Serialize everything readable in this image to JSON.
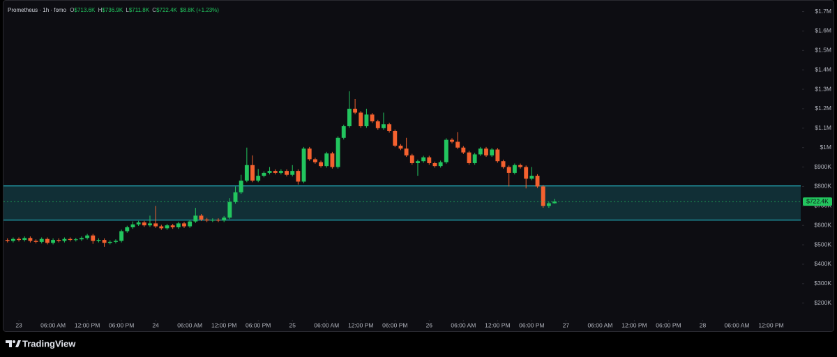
{
  "header": {
    "symbol": "Prometheus · 1h · fomo",
    "ohlc": [
      {
        "key": "O",
        "value": "$713.6K"
      },
      {
        "key": "H",
        "value": "$736.9K"
      },
      {
        "key": "L",
        "value": "$711.8K"
      },
      {
        "key": "C",
        "value": "$722.4K"
      }
    ],
    "change": "$8.8K (+1.23%)"
  },
  "brand": "TradingView",
  "chart_data": {
    "type": "candlestick",
    "up_color": "#22c55e",
    "down_color": "#f4612f",
    "grid": false,
    "x": [
      -2,
      -1,
      0,
      1,
      2,
      3,
      4,
      5,
      6,
      7,
      8,
      9,
      10,
      11,
      12,
      13,
      14,
      15,
      16,
      17,
      18,
      19,
      20,
      21,
      22,
      23,
      24,
      25,
      26,
      27,
      28,
      29,
      30,
      31,
      32,
      33,
      34,
      35,
      36,
      37,
      38,
      39,
      40,
      41,
      42,
      43,
      44,
      45,
      46,
      47,
      48,
      49,
      50,
      51,
      52,
      53,
      54,
      55,
      56,
      57,
      58,
      59,
      60,
      61,
      62,
      63,
      64,
      65,
      66,
      67,
      68,
      69,
      70,
      71,
      72,
      73,
      74,
      75,
      76,
      77,
      78,
      79,
      80,
      81,
      82,
      83,
      84,
      85,
      86,
      87,
      88,
      89,
      90,
      91,
      92,
      93,
      94
    ],
    "open": [
      525000,
      520000,
      530000,
      525000,
      535000,
      520000,
      515000,
      530000,
      510000,
      525000,
      520000,
      530000,
      525000,
      528000,
      535000,
      548000,
      520000,
      525000,
      510000,
      515000,
      520000,
      570000,
      590000,
      605000,
      615000,
      600000,
      610000,
      595000,
      585000,
      600000,
      590000,
      610000,
      595000,
      620000,
      650000,
      630000,
      625000,
      628000,
      625000,
      640000,
      720000,
      770000,
      830000,
      910000,
      830000,
      855000,
      870000,
      880000,
      870000,
      880000,
      860000,
      880000,
      825000,
      995000,
      940000,
      925000,
      905000,
      970000,
      900000,
      1050000,
      1110000,
      1200000,
      1180000,
      1110000,
      1170000,
      1135000,
      1100000,
      1120000,
      1085000,
      1010000,
      995000,
      960000,
      920000,
      930000,
      950000,
      920000,
      905000,
      925000,
      1040000,
      1030000,
      1000000,
      975000,
      920000,
      965000,
      995000,
      960000,
      990000,
      930000,
      900000,
      870000,
      910000,
      900000,
      840000,
      855000,
      800000,
      700000,
      713600
    ],
    "high": [
      533000,
      538000,
      538000,
      543000,
      543000,
      528000,
      538000,
      538000,
      533000,
      533000,
      538000,
      538000,
      536000,
      543000,
      556000,
      556000,
      533000,
      533000,
      523000,
      528000,
      578000,
      598000,
      620000,
      623000,
      623000,
      650000,
      700000,
      603000,
      608000,
      608000,
      618000,
      618000,
      628000,
      690000,
      658000,
      638000,
      636000,
      636000,
      648000,
      740000,
      800000,
      860000,
      1000000,
      960000,
      890000,
      878000,
      900000,
      888000,
      888000,
      888000,
      910000,
      888000,
      1003000,
      1003000,
      948000,
      933000,
      978000,
      978000,
      1058000,
      1118000,
      1290000,
      1250000,
      1188000,
      1200000,
      1178000,
      1143000,
      1180000,
      1128000,
      1093000,
      1018000,
      1050000,
      968000,
      938000,
      958000,
      958000,
      928000,
      933000,
      1048000,
      1048000,
      1080000,
      1008000,
      983000,
      973000,
      1003000,
      1003000,
      998000,
      998000,
      938000,
      908000,
      918000,
      918000,
      908000,
      900000,
      863000,
      808000,
      721000,
      736900
    ],
    "low": [
      512000,
      512000,
      517000,
      517000,
      512000,
      507000,
      507000,
      502000,
      502000,
      512000,
      512000,
      517000,
      517000,
      520000,
      527000,
      505000,
      512000,
      490000,
      502000,
      507000,
      512000,
      562000,
      582000,
      597000,
      592000,
      592000,
      587000,
      577000,
      577000,
      582000,
      582000,
      587000,
      587000,
      612000,
      622000,
      617000,
      617000,
      617000,
      617000,
      632000,
      712000,
      762000,
      822000,
      822000,
      822000,
      847000,
      862000,
      862000,
      862000,
      852000,
      852000,
      810000,
      817000,
      932000,
      917000,
      897000,
      897000,
      892000,
      892000,
      1042000,
      1102000,
      1172000,
      1102000,
      1102000,
      1127000,
      1092000,
      1092000,
      1077000,
      1002000,
      987000,
      952000,
      912000,
      855000,
      922000,
      912000,
      897000,
      897000,
      917000,
      1022000,
      992000,
      967000,
      912000,
      912000,
      957000,
      952000,
      952000,
      922000,
      892000,
      800000,
      862000,
      892000,
      790000,
      832000,
      792000,
      690000,
      690000,
      711800
    ],
    "close": [
      520000,
      530000,
      525000,
      535000,
      520000,
      515000,
      530000,
      510000,
      525000,
      520000,
      530000,
      525000,
      528000,
      535000,
      548000,
      520000,
      525000,
      510000,
      515000,
      520000,
      570000,
      590000,
      605000,
      615000,
      600000,
      610000,
      595000,
      585000,
      600000,
      590000,
      610000,
      595000,
      620000,
      650000,
      630000,
      625000,
      628000,
      625000,
      640000,
      720000,
      770000,
      830000,
      910000,
      830000,
      855000,
      870000,
      880000,
      870000,
      880000,
      860000,
      880000,
      825000,
      995000,
      940000,
      925000,
      905000,
      970000,
      900000,
      1050000,
      1110000,
      1200000,
      1180000,
      1110000,
      1170000,
      1135000,
      1100000,
      1120000,
      1085000,
      1010000,
      995000,
      960000,
      920000,
      930000,
      950000,
      920000,
      905000,
      925000,
      1040000,
      1030000,
      1000000,
      975000,
      920000,
      965000,
      995000,
      960000,
      990000,
      930000,
      900000,
      870000,
      910000,
      900000,
      840000,
      855000,
      800000,
      700000,
      713600,
      722400
    ],
    "xlim": [
      -2.7,
      137.2
    ],
    "xticks": [
      {
        "value": 0,
        "label": "23"
      },
      {
        "value": 6,
        "label": "06:00 AM"
      },
      {
        "value": 12,
        "label": "12:00 PM"
      },
      {
        "value": 18,
        "label": "06:00 PM"
      },
      {
        "value": 24,
        "label": "24"
      },
      {
        "value": 30,
        "label": "06:00 AM"
      },
      {
        "value": 36,
        "label": "12:00 PM"
      },
      {
        "value": 42,
        "label": "06:00 PM"
      },
      {
        "value": 48,
        "label": "25"
      },
      {
        "value": 54,
        "label": "06:00 AM"
      },
      {
        "value": 60,
        "label": "12:00 PM"
      },
      {
        "value": 66,
        "label": "06:00 PM"
      },
      {
        "value": 72,
        "label": "26"
      },
      {
        "value": 78,
        "label": "06:00 AM"
      },
      {
        "value": 84,
        "label": "12:00 PM"
      },
      {
        "value": 90,
        "label": "06:00 PM"
      },
      {
        "value": 96,
        "label": "27"
      },
      {
        "value": 102,
        "label": "06:00 AM"
      },
      {
        "value": 108,
        "label": "12:00 PM"
      },
      {
        "value": 114,
        "label": "06:00 PM"
      },
      {
        "value": 120,
        "label": "28"
      },
      {
        "value": 126,
        "label": "06:00 AM"
      },
      {
        "value": 132,
        "label": "12:00 PM"
      }
    ],
    "ylim": [
      120000,
      1745000
    ],
    "yticks": [
      {
        "value": 200000,
        "label": "$200K"
      },
      {
        "value": 300000,
        "label": "$300K"
      },
      {
        "value": 400000,
        "label": "$400K"
      },
      {
        "value": 500000,
        "label": "$500K"
      },
      {
        "value": 600000,
        "label": "$600K"
      },
      {
        "value": 700000,
        "label": "$700K"
      },
      {
        "value": 800000,
        "label": "$800K"
      },
      {
        "value": 900000,
        "label": "$900K"
      },
      {
        "value": 1000000,
        "label": "$1M"
      },
      {
        "value": 1100000,
        "label": "$1.1M"
      },
      {
        "value": 1200000,
        "label": "$1.2M"
      },
      {
        "value": 1300000,
        "label": "$1.3M"
      },
      {
        "value": 1400000,
        "label": "$1.4M"
      },
      {
        "value": 1500000,
        "label": "$1.5M"
      },
      {
        "value": 1600000,
        "label": "$1.6M"
      },
      {
        "value": 1700000,
        "label": "$1.7M"
      }
    ],
    "zone": [
      627000,
      803000
    ],
    "zone_color": "#25b7c6",
    "last_price": {
      "value": 722400,
      "label": "$722.4K"
    }
  }
}
